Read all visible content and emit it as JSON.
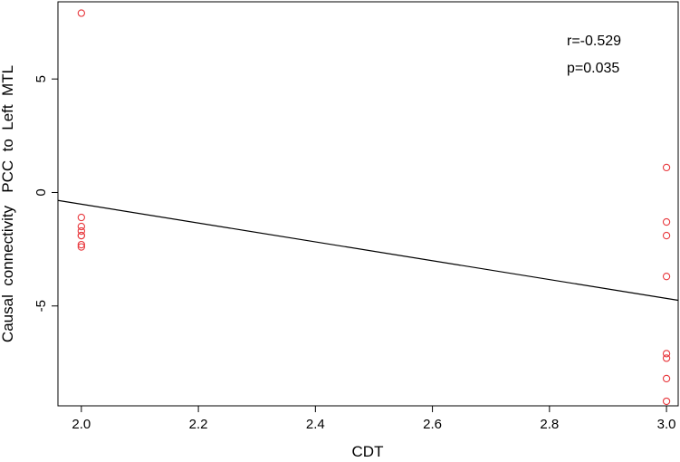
{
  "chart_data": {
    "type": "scatter",
    "xlabel": "CDT",
    "ylabel": "Causal  connectivity   PCC  to  Left  MTL",
    "xlim": [
      1.96,
      3.02
    ],
    "ylim": [
      -9.4,
      8.4
    ],
    "xticks": [
      "2.0",
      "2.2",
      "2.4",
      "2.6",
      "2.8",
      "3.0"
    ],
    "yticks": [
      "-5",
      "0",
      "5"
    ],
    "annotations": [
      "r=-0.529",
      "p=0.035"
    ],
    "point_color": "#e8383d",
    "line_color": "#000000",
    "series": [
      {
        "x": [
          2.0,
          2.0,
          2.0,
          2.0,
          2.0,
          2.0,
          2.0,
          2.0,
          3.0,
          3.0,
          3.0,
          3.0,
          3.0,
          3.0,
          3.0,
          3.0
        ],
        "y": [
          7.9,
          -1.1,
          -1.5,
          -1.7,
          -1.9,
          -1.9,
          -2.3,
          -2.4,
          1.1,
          -1.3,
          -1.9,
          -3.7,
          -7.1,
          -7.3,
          -8.2,
          -9.2
        ]
      }
    ],
    "fit_line": {
      "x": [
        1.96,
        3.02
      ],
      "y": [
        -0.35,
        -4.75
      ]
    }
  }
}
